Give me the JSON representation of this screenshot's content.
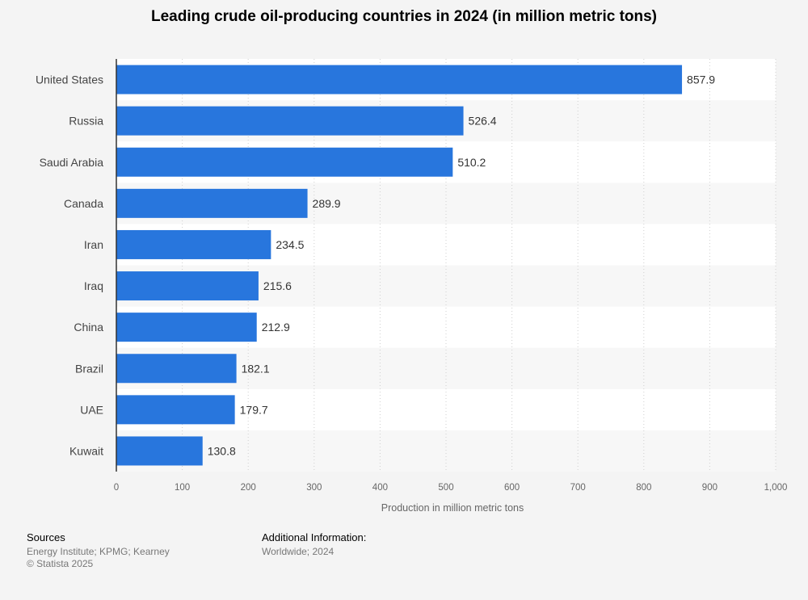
{
  "chart_data": {
    "type": "bar",
    "orientation": "horizontal",
    "title": "Leading crude oil-producing countries in 2024 (in million metric tons)",
    "xlabel": "Production in million metric tons",
    "categories": [
      "United States",
      "Russia",
      "Saudi Arabia",
      "Canada",
      "Iran",
      "Iraq",
      "China",
      "Brazil",
      "UAE",
      "Kuwait"
    ],
    "values": [
      857.9,
      526.4,
      510.2,
      289.9,
      234.5,
      215.6,
      212.9,
      182.1,
      179.7,
      130.8
    ],
    "value_labels": [
      "857.9",
      "526.4",
      "510.2",
      "289.9",
      "234.5",
      "215.6",
      "212.9",
      "182.1",
      "179.7",
      "130.8"
    ],
    "xlim": [
      0,
      1000
    ],
    "ticks": [
      0,
      100,
      200,
      300,
      400,
      500,
      600,
      700,
      800,
      900,
      1000
    ],
    "tick_labels": [
      "0",
      "100",
      "200",
      "300",
      "400",
      "500",
      "600",
      "700",
      "800",
      "900",
      "1,000"
    ],
    "grid": "vertical-dotted",
    "bar_color": "#2876dd"
  },
  "footer": {
    "sources_heading": "Sources",
    "sources_text": "Energy Institute; KPMG; Kearney",
    "copyright": "© Statista 2025",
    "additional_heading": "Additional Information:",
    "additional_text": "Worldwide; 2024"
  }
}
